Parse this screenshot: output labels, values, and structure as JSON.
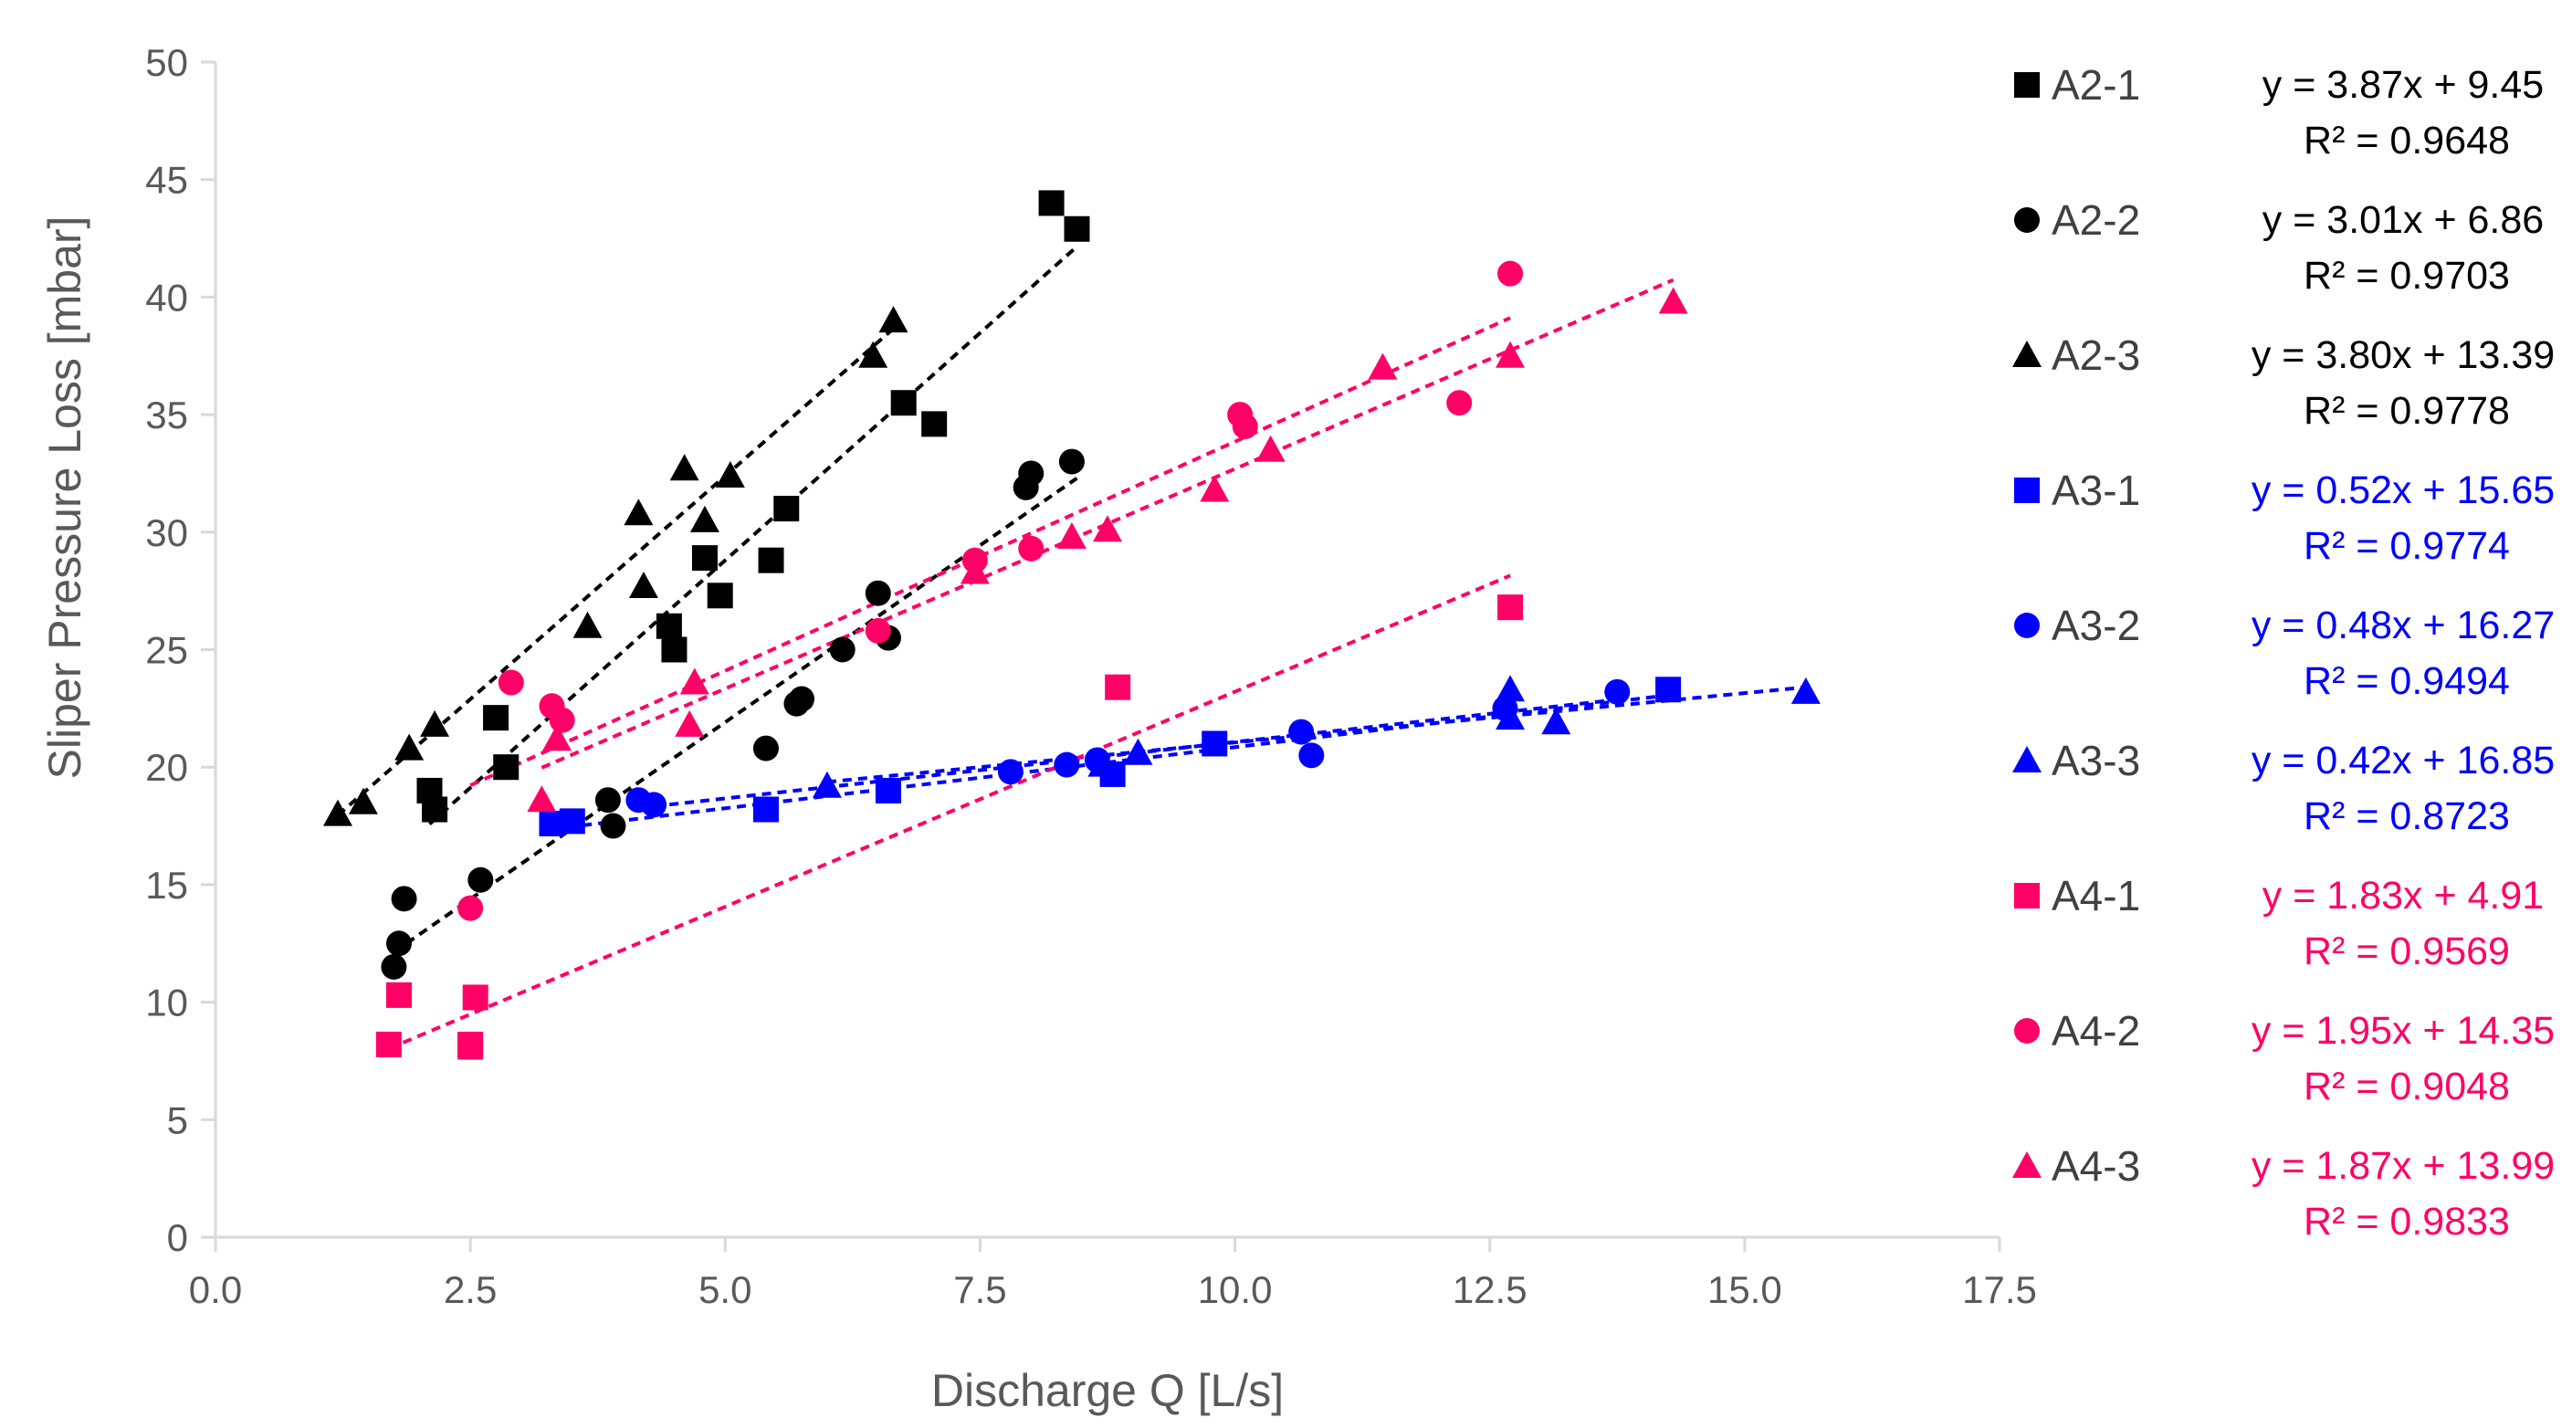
{
  "chart_data": {
    "type": "scatter",
    "title": "",
    "xlabel": "Discharge Q [L/s]",
    "ylabel": "Sliper Pressure Loss [mbar]",
    "xlim": [
      0,
      17.5
    ],
    "ylim": [
      0,
      50
    ],
    "xticks": [
      "0.0",
      "2.5",
      "5.0",
      "7.5",
      "10.0",
      "12.5",
      "15.0",
      "17.5"
    ],
    "yticks": [
      "0",
      "5",
      "10",
      "15",
      "20",
      "25",
      "30",
      "35",
      "40",
      "45",
      "50"
    ],
    "grid": false,
    "legend": "right",
    "colors": {
      "black": "#000000",
      "blue": "#0000ff",
      "pink": "#ff0066"
    },
    "series": [
      {
        "name": "A2-1",
        "marker": "square",
        "color": "#000000",
        "equation": "y = 3.87x + 9.45",
        "r2": "R² = 0.9648",
        "fit": {
          "slope": 3.87,
          "intercept": 9.45,
          "x0": 2.1,
          "x1": 8.45
        },
        "points": [
          [
            2.1,
            19.0
          ],
          [
            2.15,
            18.2
          ],
          [
            2.75,
            22.1
          ],
          [
            2.85,
            20.0
          ],
          [
            4.45,
            26.0
          ],
          [
            4.5,
            25.0
          ],
          [
            4.8,
            28.9
          ],
          [
            4.95,
            27.3
          ],
          [
            5.45,
            28.8
          ],
          [
            5.6,
            31.0
          ],
          [
            6.75,
            35.5
          ],
          [
            7.05,
            34.6
          ],
          [
            8.2,
            44.0
          ],
          [
            8.45,
            42.9
          ]
        ]
      },
      {
        "name": "A2-2",
        "marker": "circle",
        "color": "#000000",
        "equation": "y = 3.01x + 6.86",
        "r2": "R² = 0.9703",
        "fit": {
          "slope": 3.01,
          "intercept": 6.86,
          "x0": 1.75,
          "x1": 8.45
        },
        "points": [
          [
            1.75,
            11.5
          ],
          [
            1.8,
            12.5
          ],
          [
            1.85,
            14.4
          ],
          [
            2.6,
            15.2
          ],
          [
            3.85,
            18.6
          ],
          [
            3.9,
            17.5
          ],
          [
            5.4,
            20.8
          ],
          [
            5.7,
            22.7
          ],
          [
            5.75,
            22.9
          ],
          [
            6.15,
            25.0
          ],
          [
            6.5,
            27.4
          ],
          [
            6.6,
            25.5
          ],
          [
            7.95,
            31.9
          ],
          [
            8.0,
            32.5
          ],
          [
            8.4,
            33.0
          ]
        ]
      },
      {
        "name": "A2-3",
        "marker": "triangle",
        "color": "#000000",
        "equation": "y = 3.80x + 13.39",
        "r2": "R² = 0.9778",
        "fit": {
          "slope": 3.8,
          "intercept": 13.39,
          "x0": 1.2,
          "x1": 6.65
        },
        "points": [
          [
            1.2,
            18.0
          ],
          [
            1.45,
            18.5
          ],
          [
            1.9,
            20.8
          ],
          [
            2.15,
            21.8
          ],
          [
            3.65,
            26.0
          ],
          [
            4.15,
            30.8
          ],
          [
            4.2,
            27.7
          ],
          [
            4.6,
            32.7
          ],
          [
            4.8,
            30.5
          ],
          [
            5.05,
            32.4
          ],
          [
            6.45,
            37.5
          ],
          [
            6.65,
            39.0
          ]
        ]
      },
      {
        "name": "A3-1",
        "marker": "square",
        "color": "#0000ff",
        "equation": "y = 0.52x + 15.65",
        "r2": "R² = 0.9774",
        "fit": {
          "slope": 0.52,
          "intercept": 15.65,
          "x0": 3.3,
          "x1": 14.3
        },
        "points": [
          [
            3.3,
            17.6
          ],
          [
            3.5,
            17.7
          ],
          [
            5.4,
            18.2
          ],
          [
            6.6,
            19.0
          ],
          [
            8.8,
            19.7
          ],
          [
            9.8,
            21.0
          ],
          [
            14.25,
            23.3
          ]
        ]
      },
      {
        "name": "A3-2",
        "marker": "circle",
        "color": "#0000ff",
        "equation": "y = 0.48x + 16.27",
        "r2": "R² = 0.9494",
        "fit": {
          "slope": 0.48,
          "intercept": 16.27,
          "x0": 4.15,
          "x1": 13.8
        },
        "points": [
          [
            4.15,
            18.6
          ],
          [
            4.3,
            18.4
          ],
          [
            7.8,
            19.8
          ],
          [
            8.35,
            20.1
          ],
          [
            8.65,
            20.3
          ],
          [
            10.65,
            21.5
          ],
          [
            10.75,
            20.5
          ],
          [
            12.65,
            22.5
          ],
          [
            13.75,
            23.2
          ]
        ]
      },
      {
        "name": "A3-3",
        "marker": "triangle",
        "color": "#0000ff",
        "equation": "y = 0.42x + 16.85",
        "r2": "R² = 0.8723",
        "fit": {
          "slope": 0.42,
          "intercept": 16.85,
          "x0": 6.0,
          "x1": 15.6
        },
        "points": [
          [
            6.0,
            19.2
          ],
          [
            8.7,
            20.1
          ],
          [
            9.05,
            20.6
          ],
          [
            12.7,
            22.1
          ],
          [
            12.7,
            23.3
          ],
          [
            13.15,
            21.9
          ],
          [
            15.6,
            23.2
          ]
        ]
      },
      {
        "name": "A4-1",
        "marker": "square",
        "color": "#ff0066",
        "equation": "y = 1.83x + 4.91",
        "r2": "R² = 0.9569",
        "fit": {
          "slope": 1.83,
          "intercept": 4.91,
          "x0": 1.7,
          "x1": 12.7
        },
        "points": [
          [
            1.7,
            8.2
          ],
          [
            1.8,
            10.3
          ],
          [
            2.5,
            8.1
          ],
          [
            2.5,
            8.2
          ],
          [
            2.55,
            10.2
          ],
          [
            8.85,
            23.4
          ],
          [
            12.7,
            26.8
          ]
        ]
      },
      {
        "name": "A4-2",
        "marker": "circle",
        "color": "#ff0066",
        "equation": "y = 1.95x + 14.35",
        "r2": "R² = 0.9048",
        "fit": {
          "slope": 1.95,
          "intercept": 14.35,
          "x0": 2.5,
          "x1": 12.7
        },
        "points": [
          [
            2.5,
            14.0
          ],
          [
            2.9,
            23.6
          ],
          [
            3.3,
            22.6
          ],
          [
            3.4,
            22.0
          ],
          [
            6.5,
            25.8
          ],
          [
            7.45,
            28.8
          ],
          [
            8.0,
            29.3
          ],
          [
            10.05,
            35.0
          ],
          [
            10.1,
            34.5
          ],
          [
            12.2,
            35.5
          ],
          [
            12.7,
            41.0
          ]
        ]
      },
      {
        "name": "A4-3",
        "marker": "triangle",
        "color": "#ff0066",
        "equation": "y = 1.87x + 13.99",
        "r2": "R² = 0.9833",
        "fit": {
          "slope": 1.87,
          "intercept": 13.99,
          "x0": 3.2,
          "x1": 14.3
        },
        "points": [
          [
            3.2,
            18.6
          ],
          [
            3.35,
            21.2
          ],
          [
            4.65,
            21.8
          ],
          [
            4.7,
            23.6
          ],
          [
            7.45,
            28.3
          ],
          [
            8.4,
            29.8
          ],
          [
            8.75,
            30.1
          ],
          [
            9.8,
            31.8
          ],
          [
            10.35,
            33.5
          ],
          [
            11.45,
            37.0
          ],
          [
            12.7,
            37.5
          ],
          [
            14.3,
            39.8
          ]
        ]
      }
    ]
  }
}
